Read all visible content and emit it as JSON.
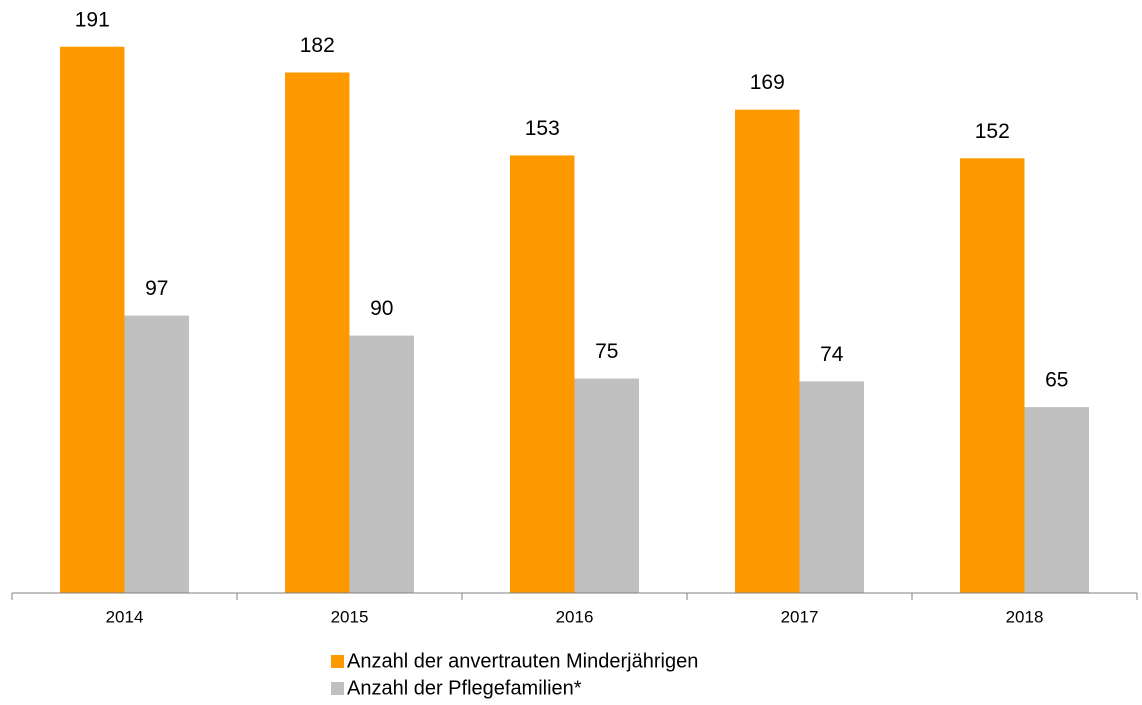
{
  "chart_data": {
    "type": "bar",
    "categories": [
      "2014",
      "2015",
      "2016",
      "2017",
      "2018"
    ],
    "series": [
      {
        "name": "Anzahl der anvertrauten Minderjährigen",
        "color": "#ff9900",
        "values": [
          191,
          182,
          153,
          169,
          152
        ]
      },
      {
        "name": "Anzahl der Pflegefamilien*",
        "color": "#c0c0c0",
        "values": [
          97,
          90,
          75,
          74,
          65
        ]
      }
    ],
    "ylim": [
      0,
      200
    ],
    "grid": false,
    "legend": "bottom"
  }
}
